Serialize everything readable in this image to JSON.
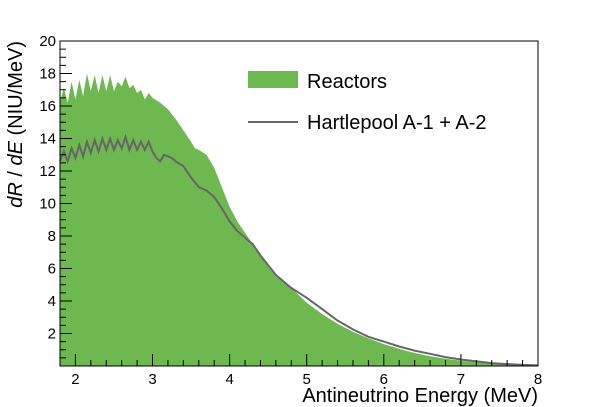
{
  "chart_data": {
    "type": "area",
    "xlabel": "Antineutrino Energy (MeV)",
    "ylabel": "dR / dE (NIU/MeV)",
    "ylabel_parts": {
      "r": "dR",
      "slash": " / ",
      "e": "dE",
      "unit": " (NIU/MeV)"
    },
    "xlim": [
      1.8,
      8
    ],
    "ylim": [
      0,
      20
    ],
    "x_ticks": [
      2,
      3,
      4,
      5,
      6,
      7,
      8
    ],
    "y_ticks": [
      2,
      4,
      6,
      8,
      10,
      12,
      14,
      16,
      18,
      20
    ],
    "grid": false,
    "legend_position": "top-right",
    "colors": {
      "reactors": "#6db84f",
      "hartlepool": "#666666"
    },
    "series": [
      {
        "name": "Reactors",
        "kind": "filled-area",
        "x": [
          1.8,
          1.85,
          1.9,
          1.95,
          2.0,
          2.05,
          2.1,
          2.15,
          2.2,
          2.25,
          2.3,
          2.35,
          2.4,
          2.45,
          2.5,
          2.55,
          2.6,
          2.65,
          2.7,
          2.75,
          2.8,
          2.85,
          2.9,
          2.95,
          3.0,
          3.1,
          3.2,
          3.3,
          3.4,
          3.5,
          3.55,
          3.6,
          3.7,
          3.8,
          3.9,
          4.0,
          4.1,
          4.2,
          4.3,
          4.4,
          4.5,
          4.6,
          4.8,
          5.0,
          5.2,
          5.4,
          5.6,
          5.8,
          6.0,
          6.2,
          6.4,
          6.6,
          6.8,
          7.0,
          7.2,
          7.4,
          7.6,
          7.8,
          8.0
        ],
        "y": [
          16.3,
          17.1,
          16.2,
          17.5,
          16.4,
          17.6,
          16.6,
          18.0,
          16.9,
          17.9,
          16.8,
          17.9,
          16.9,
          17.9,
          16.9,
          17.5,
          17.2,
          17.8,
          17.1,
          17.3,
          16.8,
          17.0,
          16.4,
          16.8,
          16.5,
          16.2,
          15.8,
          15.2,
          14.5,
          13.8,
          13.4,
          13.3,
          13.0,
          12.2,
          11.0,
          9.8,
          8.9,
          8.2,
          7.5,
          6.8,
          6.1,
          5.5,
          4.8,
          3.9,
          3.2,
          2.6,
          2.1,
          1.7,
          1.35,
          1.05,
          0.8,
          0.6,
          0.45,
          0.32,
          0.22,
          0.15,
          0.1,
          0.06,
          0.04
        ]
      },
      {
        "name": "Hartlepool A-1 + A-2",
        "kind": "line",
        "x": [
          1.8,
          1.85,
          1.9,
          1.95,
          2.0,
          2.05,
          2.1,
          2.15,
          2.2,
          2.25,
          2.3,
          2.35,
          2.4,
          2.45,
          2.5,
          2.55,
          2.6,
          2.65,
          2.7,
          2.75,
          2.8,
          2.85,
          2.9,
          2.95,
          3.0,
          3.05,
          3.1,
          3.15,
          3.2,
          3.25,
          3.3,
          3.4,
          3.5,
          3.6,
          3.7,
          3.8,
          3.9,
          4.0,
          4.1,
          4.2,
          4.3,
          4.4,
          4.5,
          4.6,
          4.8,
          5.0,
          5.2,
          5.4,
          5.6,
          5.8,
          6.0,
          6.2,
          6.4,
          6.6,
          6.8,
          7.0,
          7.2,
          7.4,
          7.6,
          7.8,
          8.0
        ],
        "y": [
          12.6,
          13.2,
          12.6,
          13.4,
          12.8,
          13.6,
          12.9,
          13.8,
          13.1,
          13.9,
          13.2,
          14.0,
          13.3,
          14.0,
          13.3,
          13.9,
          13.4,
          14.1,
          13.3,
          13.9,
          13.3,
          13.8,
          13.3,
          13.8,
          13.2,
          12.8,
          12.6,
          13.0,
          12.9,
          12.8,
          12.6,
          12.3,
          11.6,
          11.0,
          10.8,
          10.4,
          9.7,
          8.9,
          8.3,
          7.9,
          7.5,
          6.8,
          6.2,
          5.6,
          4.8,
          4.2,
          3.5,
          2.8,
          2.25,
          1.8,
          1.5,
          1.2,
          0.95,
          0.75,
          0.55,
          0.4,
          0.28,
          0.18,
          0.12,
          0.07,
          0.04
        ]
      }
    ]
  }
}
